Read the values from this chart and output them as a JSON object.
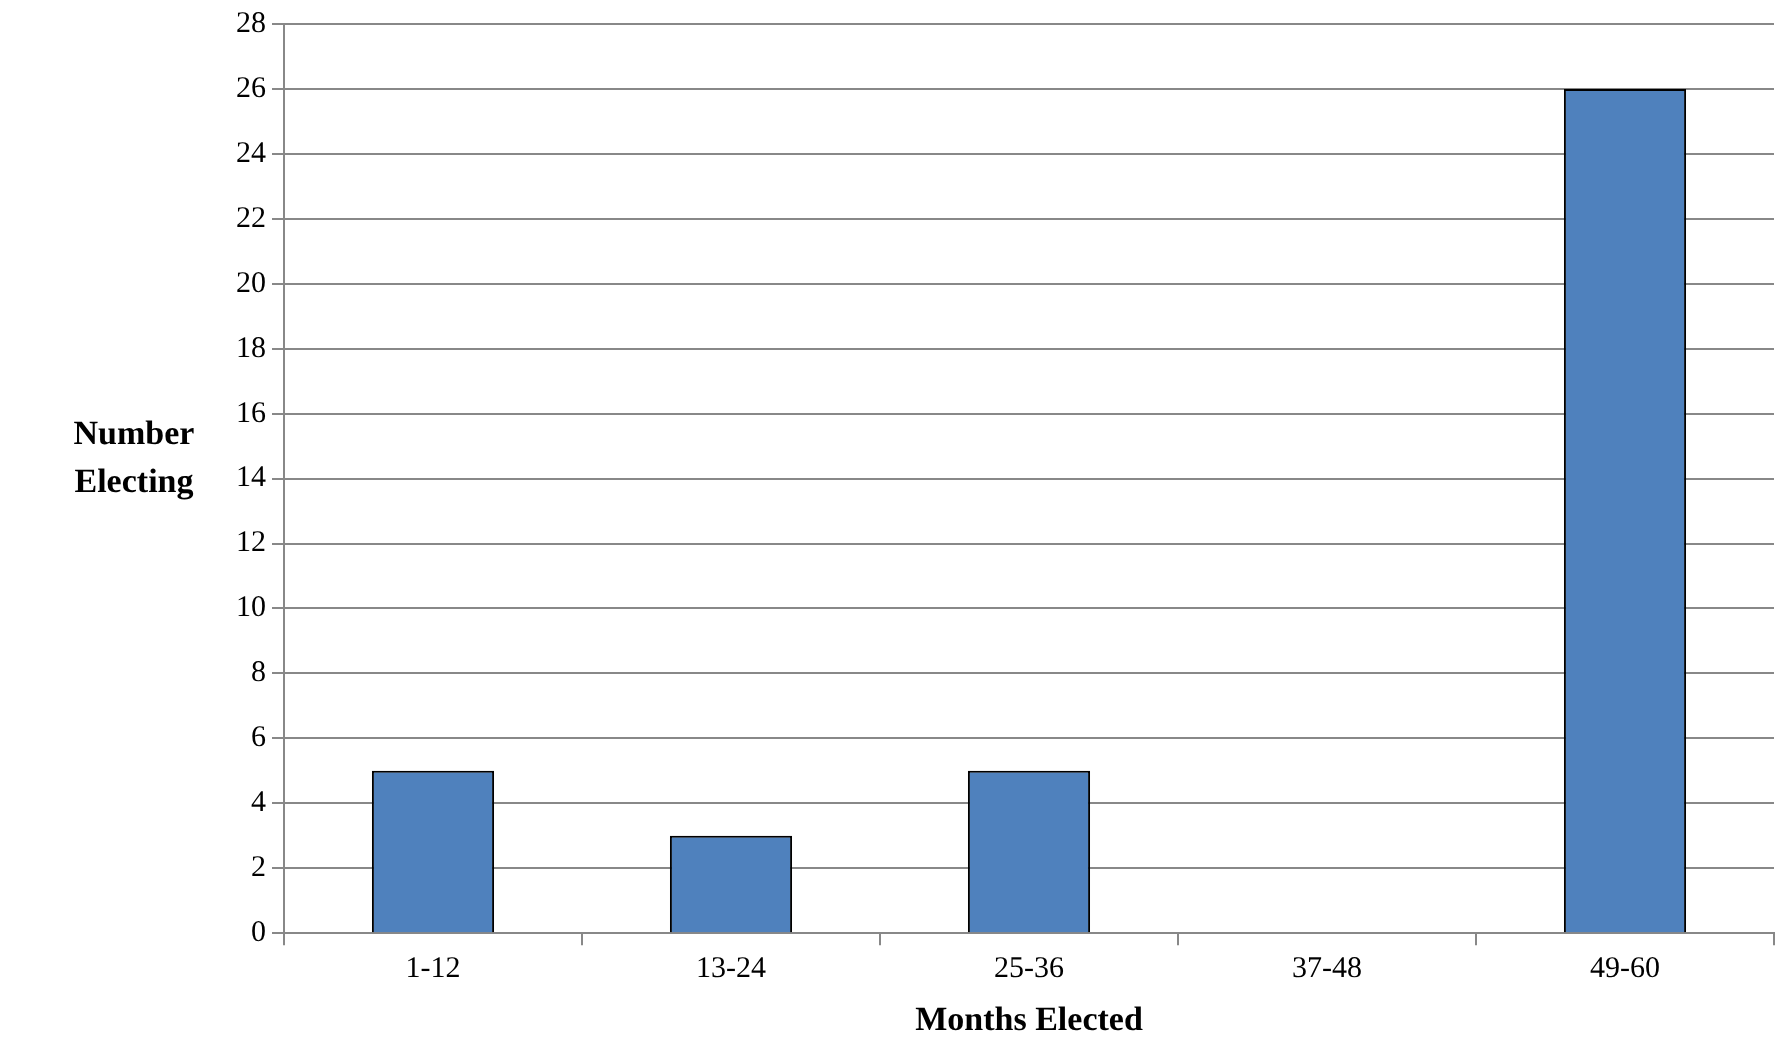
{
  "chart_data": {
    "type": "bar",
    "xlabel": "Months Elected",
    "ylabel": "Number Electing",
    "categories": [
      "1-12",
      "13-24",
      "25-36",
      "37-48",
      "49-60"
    ],
    "values": [
      5,
      3,
      5,
      0,
      26
    ],
    "color": "#4f81bd",
    "ylim": [
      0,
      28
    ],
    "yticks": [
      0,
      2,
      4,
      6,
      8,
      10,
      12,
      14,
      16,
      18,
      20,
      22,
      24,
      26,
      28
    ],
    "grid": "y",
    "legend": false
  }
}
